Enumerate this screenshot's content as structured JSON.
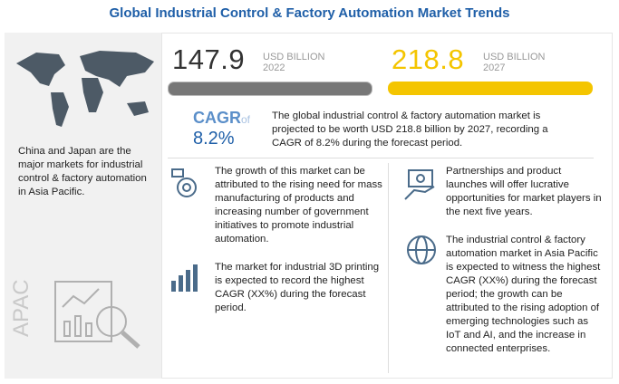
{
  "header": {
    "title": "Global Industrial Control & Factory Automation Market Trends"
  },
  "market_size": [
    {
      "value": 147.9,
      "unit": "USD BILLION",
      "year": 2022
    },
    {
      "value": 218.8,
      "unit": "USD BILLION",
      "year": 2027
    }
  ],
  "cagr": {
    "label": "CAGR",
    "suffix": "of",
    "value": "8.2%",
    "text": "The global industrial control & factory automation market is projected to be worth USD 218.8 billion by 2027, recording a CAGR of 8.2% during the forecast period."
  },
  "region": {
    "name": "APAC",
    "text": "China and Japan are the major markets for industrial control & factory automation in Asia Pacific."
  },
  "insights": [
    "The growth of this market can be attributed to the rising need for mass manufacturing of products and increasing number of government initiatives to promote industrial automation.",
    "The market for industrial 3D printing is expected to record the highest CAGR (XX%) during the forecast period.",
    "Partnerships and product launches will offer lucrative opportunities for market players in the next five years.",
    "The industrial control & factory automation market in Asia Pacific is expected to witness the highest CAGR (XX%) during the forecast period; the growth can be attributed to the rising adoption of emerging technologies such as IoT and AI, and the increase in connected enterprises."
  ]
}
